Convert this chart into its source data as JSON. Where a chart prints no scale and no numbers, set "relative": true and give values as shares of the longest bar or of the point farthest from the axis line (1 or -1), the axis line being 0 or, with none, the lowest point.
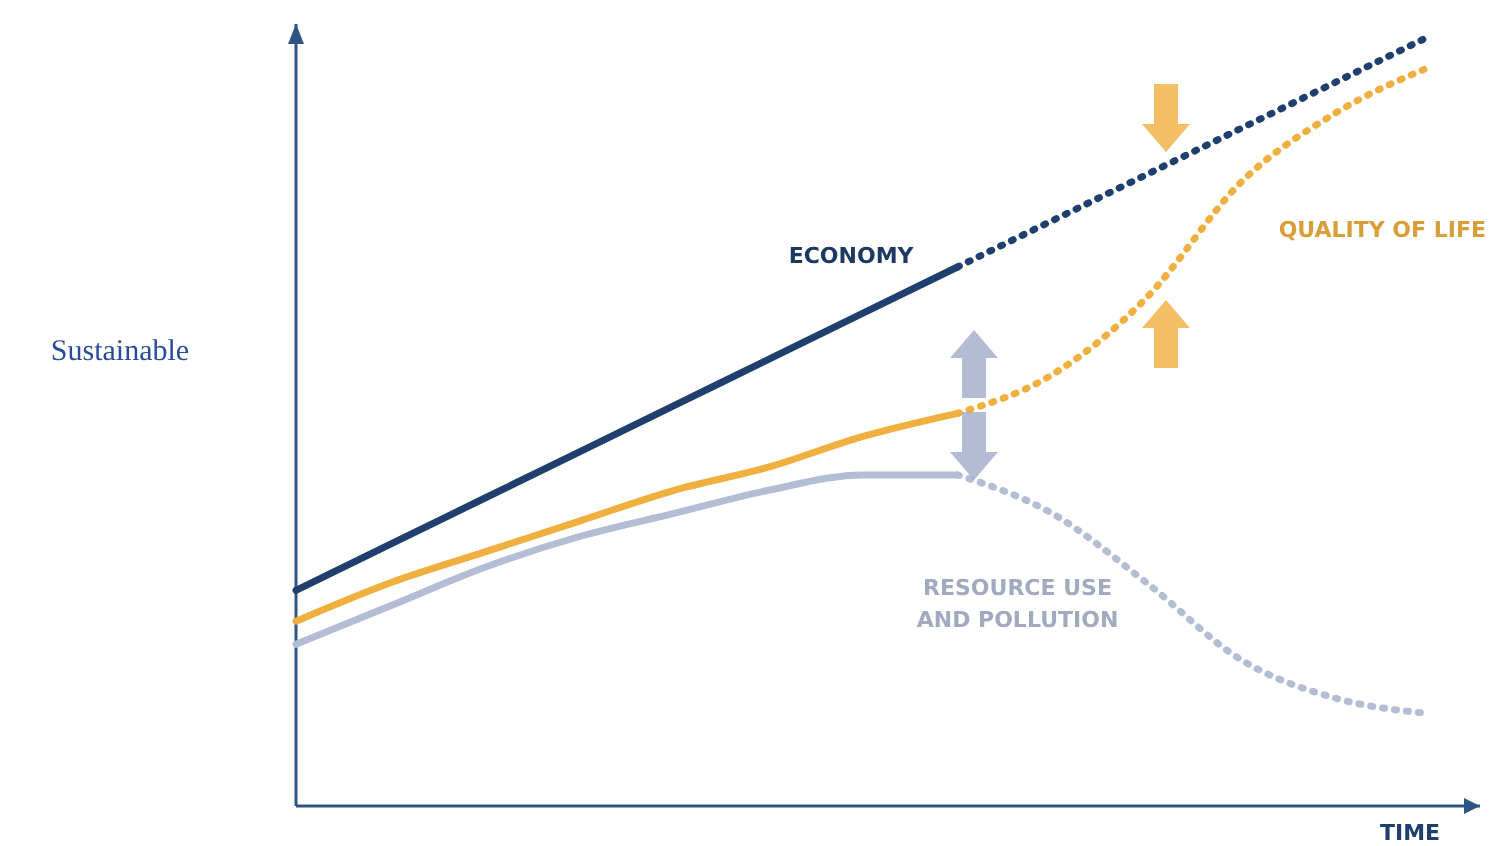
{
  "chart_data": {
    "type": "line",
    "relative": true,
    "ylabel": "Sustainable",
    "xlabel": "TIME",
    "categories": [
      null,
      null,
      null,
      null,
      null,
      null,
      null,
      null,
      null,
      null,
      null,
      null,
      null
    ],
    "series": [
      {
        "name": "ECONOMY",
        "color": "#1f3f6e",
        "line_style": "solid",
        "values": [
          0.28,
          0.34,
          0.4,
          0.46,
          0.52,
          0.58,
          0.64,
          0.7,
          null,
          null,
          null,
          null,
          null
        ]
      },
      {
        "color": "#1f3f6e",
        "line_style": "dotted",
        "values": [
          null,
          null,
          null,
          null,
          null,
          null,
          null,
          0.7,
          0.76,
          0.82,
          0.88,
          0.94,
          1.0
        ]
      },
      {
        "color": "#f0b040",
        "line_style": "solid",
        "values": [
          0.24,
          0.29,
          0.33,
          0.37,
          0.41,
          0.44,
          0.48,
          0.51,
          null,
          null,
          null,
          null,
          null
        ]
      },
      {
        "name": "QUALITY OF LIFE",
        "color": "#f0b040",
        "line_style": "dotted",
        "values": [
          null,
          null,
          null,
          null,
          null,
          null,
          null,
          0.51,
          0.56,
          0.66,
          0.81,
          0.9,
          0.96
        ]
      },
      {
        "color": "#b3bdd3",
        "line_style": "solid",
        "values": [
          0.21,
          0.26,
          0.31,
          0.35,
          0.38,
          0.41,
          0.43,
          0.43,
          null,
          null,
          null,
          null,
          null
        ]
      },
      {
        "name": "RESOURCE USE AND POLLUTION",
        "color": "#b3bdd3",
        "line_style": "dotted",
        "values": [
          null,
          null,
          null,
          null,
          null,
          null,
          null,
          0.43,
          0.38,
          0.29,
          0.19,
          0.14,
          0.12
        ]
      }
    ]
  }
}
